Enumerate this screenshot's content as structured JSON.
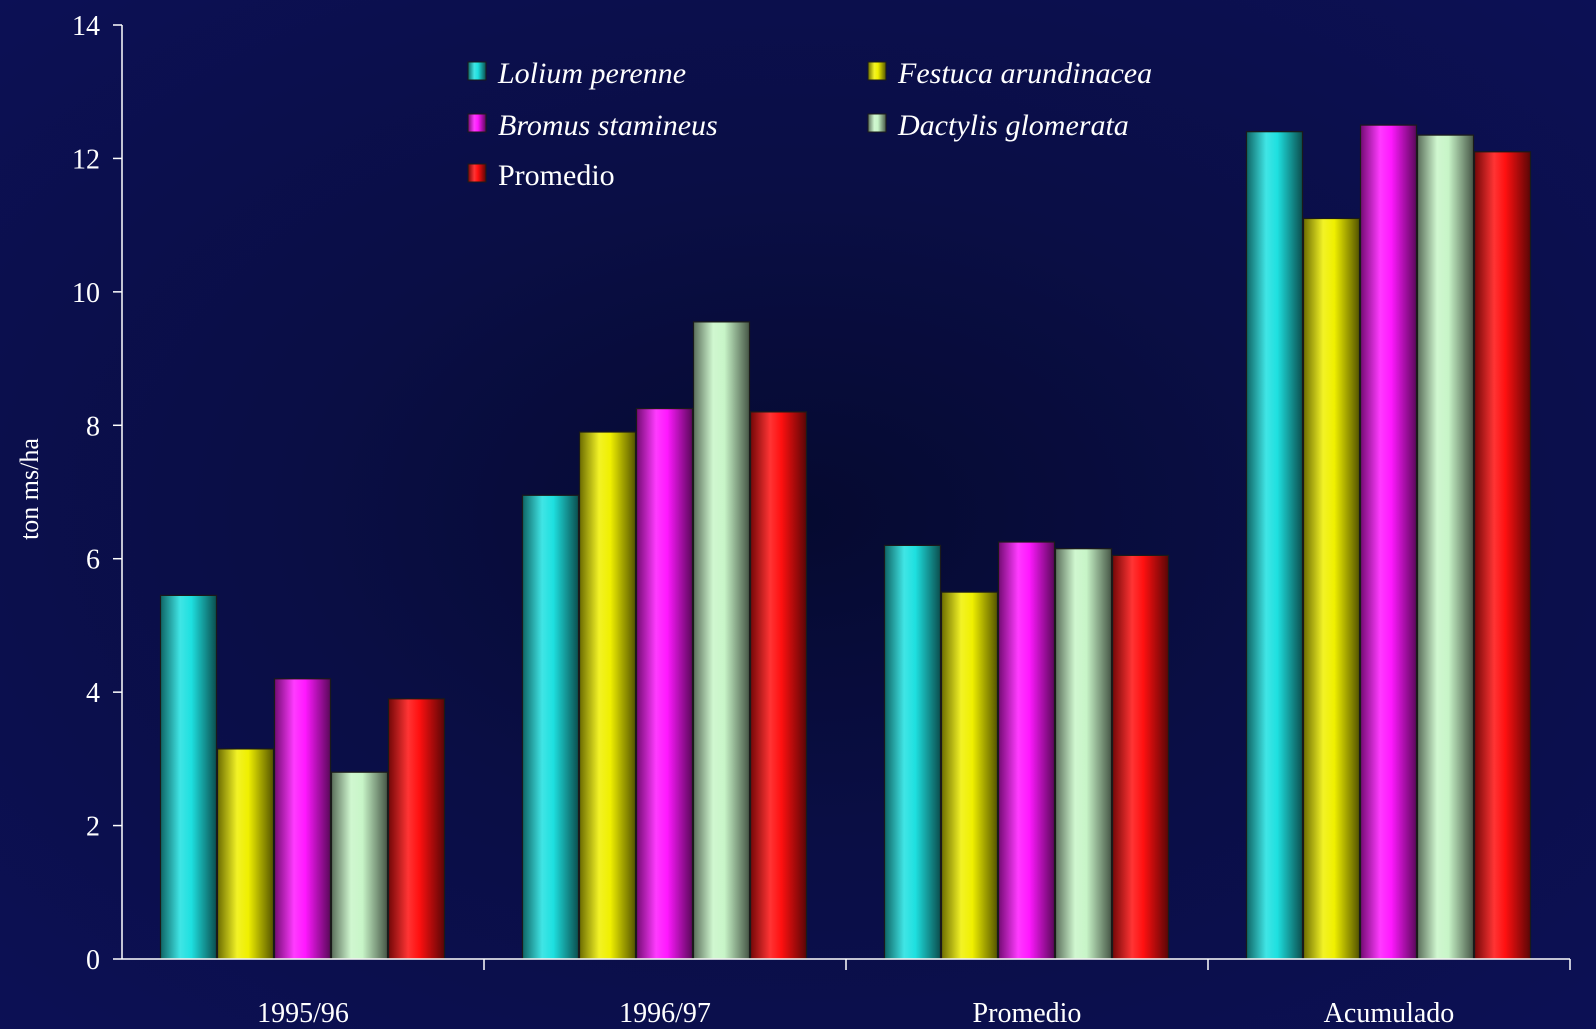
{
  "chart_data": {
    "type": "bar",
    "title": "",
    "xlabel": "",
    "ylabel": "ton ms/ha",
    "ylim": [
      0,
      14
    ],
    "yticks": [
      0,
      2,
      4,
      6,
      8,
      10,
      12,
      14
    ],
    "grid": false,
    "legend_position": "top-center",
    "categories": [
      "1995/96",
      "1996/97",
      "Promedio",
      "Acumulado"
    ],
    "series": [
      {
        "name": "Lolium perenne",
        "italic": true,
        "color": "#1ee0e0",
        "values": [
          5.45,
          6.95,
          6.2,
          12.4
        ]
      },
      {
        "name": "Festuca arundinacea",
        "italic": true,
        "color": "#f0f000",
        "values": [
          3.15,
          7.9,
          5.5,
          11.1
        ]
      },
      {
        "name": "Bromus stamineus",
        "italic": true,
        "color": "#ff18ff",
        "values": [
          4.2,
          8.25,
          6.25,
          12.5
        ]
      },
      {
        "name": "Dactylis glomerata",
        "italic": true,
        "color": "#c8f5c8",
        "values": [
          2.8,
          9.55,
          6.15,
          12.35
        ]
      },
      {
        "name": "Promedio",
        "italic": false,
        "color": "#ff1010",
        "values": [
          3.9,
          8.2,
          6.05,
          12.1
        ]
      }
    ]
  }
}
